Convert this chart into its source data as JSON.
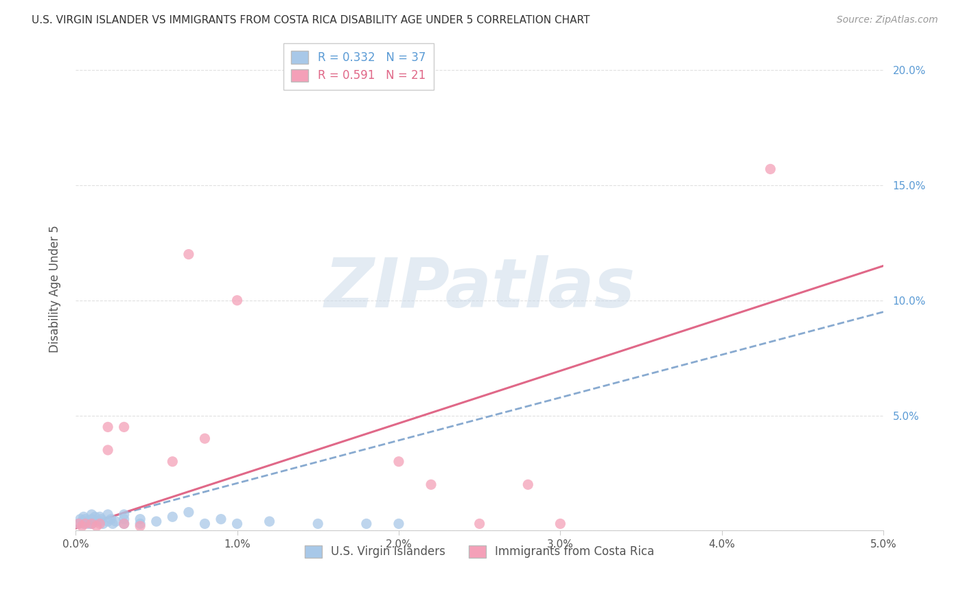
{
  "title": "U.S. VIRGIN ISLANDER VS IMMIGRANTS FROM COSTA RICA DISABILITY AGE UNDER 5 CORRELATION CHART",
  "source": "Source: ZipAtlas.com",
  "ylabel": "Disability Age Under 5",
  "legend_label1": "U.S. Virgin Islanders",
  "legend_label2": "Immigrants from Costa Rica",
  "R1": 0.332,
  "N1": 37,
  "R2": 0.591,
  "N2": 21,
  "color1": "#a8c8e8",
  "color2": "#f4a0b8",
  "trendline1_color": "#88aad0",
  "trendline2_color": "#e06888",
  "watermark_text": "ZIPatlas",
  "watermark_color": "#c8d8e8",
  "xlim": [
    0.0,
    0.05
  ],
  "ylim": [
    0.0,
    0.21
  ],
  "xtick_vals": [
    0.0,
    0.01,
    0.02,
    0.03,
    0.04,
    0.05
  ],
  "xtick_labels": [
    "0.0%",
    "1.0%",
    "2.0%",
    "3.0%",
    "4.0%",
    "5.0%"
  ],
  "ytick_vals": [
    0.0,
    0.05,
    0.1,
    0.15,
    0.2
  ],
  "ytick_labels": [
    "",
    "5.0%",
    "10.0%",
    "15.0%",
    "20.0%"
  ],
  "blue_x": [
    0.0002,
    0.0003,
    0.0004,
    0.0005,
    0.0005,
    0.0006,
    0.0007,
    0.0008,
    0.001,
    0.001,
    0.001,
    0.0012,
    0.0013,
    0.0015,
    0.0015,
    0.0016,
    0.0017,
    0.002,
    0.002,
    0.0022,
    0.0023,
    0.0025,
    0.003,
    0.003,
    0.003,
    0.004,
    0.004,
    0.005,
    0.006,
    0.007,
    0.008,
    0.009,
    0.01,
    0.012,
    0.015,
    0.018,
    0.02
  ],
  "blue_y": [
    0.003,
    0.005,
    0.004,
    0.006,
    0.003,
    0.005,
    0.004,
    0.003,
    0.007,
    0.005,
    0.003,
    0.006,
    0.004,
    0.006,
    0.004,
    0.005,
    0.003,
    0.007,
    0.004,
    0.005,
    0.003,
    0.004,
    0.007,
    0.005,
    0.003,
    0.005,
    0.003,
    0.004,
    0.006,
    0.008,
    0.003,
    0.005,
    0.003,
    0.004,
    0.003,
    0.003,
    0.003
  ],
  "pink_x": [
    0.0002,
    0.0004,
    0.0006,
    0.001,
    0.0013,
    0.0015,
    0.002,
    0.002,
    0.003,
    0.003,
    0.004,
    0.006,
    0.007,
    0.008,
    0.01,
    0.02,
    0.022,
    0.025,
    0.028,
    0.03,
    0.043
  ],
  "pink_y": [
    0.003,
    0.002,
    0.003,
    0.003,
    0.002,
    0.003,
    0.045,
    0.035,
    0.003,
    0.045,
    0.002,
    0.03,
    0.12,
    0.04,
    0.1,
    0.03,
    0.02,
    0.003,
    0.02,
    0.003,
    0.157
  ],
  "trendline1_x": [
    0.0,
    0.05
  ],
  "trendline1_y": [
    0.002,
    0.095
  ],
  "trendline2_x": [
    0.0,
    0.05
  ],
  "trendline2_y": [
    0.001,
    0.115
  ],
  "grid_color": "#dddddd",
  "title_fontsize": 11,
  "tick_fontsize": 11,
  "legend_fontsize": 12,
  "axis_label_fontsize": 12,
  "right_tick_color": "#5b9bd5"
}
